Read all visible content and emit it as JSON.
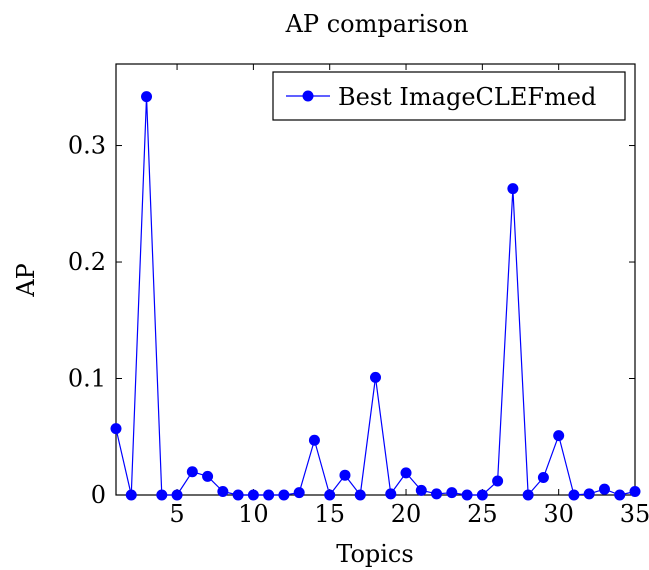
{
  "chart_data": {
    "type": "line",
    "title": "AP comparison",
    "xlabel": "Topics",
    "ylabel": "AP",
    "xlim": [
      1,
      35
    ],
    "ylim": [
      0,
      0.37
    ],
    "xticks": [
      5,
      10,
      15,
      20,
      25,
      30,
      35
    ],
    "yticks": [
      0,
      0.1,
      0.2,
      0.3
    ],
    "xtick_labels": [
      "5",
      "10",
      "15",
      "20",
      "25",
      "30",
      "35"
    ],
    "ytick_labels": [
      "0",
      "0.1",
      "0.2",
      "0.3"
    ],
    "grid": false,
    "legend_position": "top-right",
    "series": [
      {
        "name": "Best ImageCLEFmed",
        "color": "#0000ff",
        "marker": "circle",
        "x": [
          1,
          2,
          3,
          4,
          5,
          6,
          7,
          8,
          9,
          10,
          11,
          12,
          13,
          14,
          15,
          16,
          17,
          18,
          19,
          20,
          21,
          22,
          23,
          24,
          25,
          26,
          27,
          28,
          29,
          30,
          31,
          32,
          33,
          34,
          35
        ],
        "y": [
          0.057,
          0.0,
          0.342,
          0.0,
          0.0,
          0.02,
          0.016,
          0.003,
          0.0,
          0.0,
          0.0,
          0.0,
          0.002,
          0.047,
          0.0,
          0.017,
          0.0,
          0.101,
          0.001,
          0.019,
          0.004,
          0.001,
          0.002,
          0.0,
          0.0,
          0.012,
          0.263,
          0.0,
          0.015,
          0.051,
          0.0,
          0.001,
          0.005,
          0.0,
          0.003
        ]
      }
    ]
  }
}
